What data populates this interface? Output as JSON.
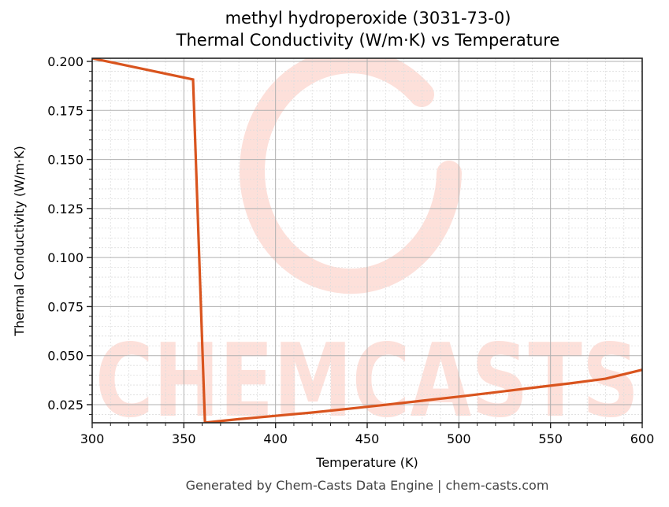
{
  "title": {
    "line1": "methyl hydroperoxide (3031-73-0)",
    "line2": "Thermal Conductivity (W/m·K) vs Temperature"
  },
  "axes": {
    "xlabel": "Temperature (K)",
    "ylabel": "Thermal Conductivity (W/m·K)",
    "xticks": [
      "300",
      "350",
      "400",
      "450",
      "500",
      "550",
      "600"
    ],
    "yticks": [
      "0.025",
      "0.050",
      "0.075",
      "0.100",
      "0.125",
      "0.150",
      "0.175",
      "0.200"
    ]
  },
  "footer": "Generated by Chem-Casts Data Engine | chem-casts.com",
  "watermark": "CHEMCASTS",
  "colors": {
    "line": "#d9541e",
    "watermark": "#fde0da",
    "grid_major": "#b0b0b0",
    "grid_minor": "#dddddd"
  },
  "chart_data": {
    "type": "line",
    "title": "methyl hydroperoxide (3031-73-0) Thermal Conductivity (W/m·K) vs Temperature",
    "xlabel": "Temperature (K)",
    "ylabel": "Thermal Conductivity (W/m·K)",
    "xlim": [
      300,
      600
    ],
    "ylim": [
      0.0158,
      0.2016
    ],
    "grid": true,
    "minor_grid": true,
    "legend": null,
    "series": [
      {
        "name": "Thermal Conductivity",
        "x": [
          300,
          355,
          361.5,
          380,
          400,
          420,
          440,
          460,
          480,
          500,
          520,
          540,
          560,
          580,
          600
        ],
        "y": [
          0.2016,
          0.1908,
          0.0158,
          0.0176,
          0.0193,
          0.021,
          0.0229,
          0.0249,
          0.027,
          0.0291,
          0.0313,
          0.0336,
          0.0358,
          0.0382,
          0.0428
        ]
      }
    ]
  }
}
